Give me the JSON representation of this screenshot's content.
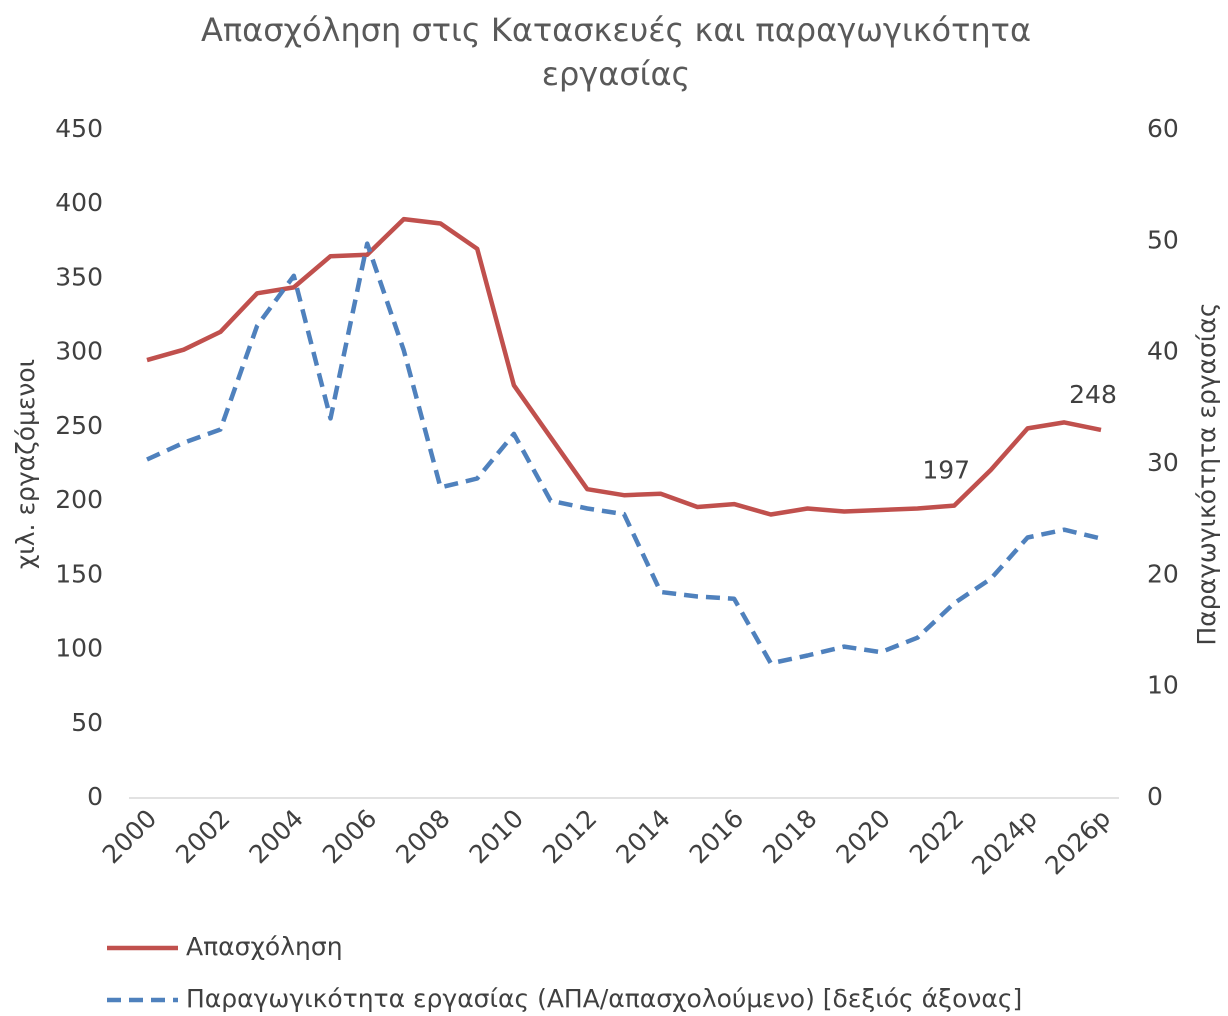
{
  "chart_data": {
    "type": "line",
    "title": [
      "Απασχόληση στις Κατασκευές και παραγωγικότητα",
      "εργασίας"
    ],
    "y_label": "χιλ. εργαζόμενοι",
    "y2_label": "Παραγωγικότητα εργασίας",
    "categories": [
      "2000",
      null,
      "2002",
      null,
      "2004",
      null,
      "2006",
      null,
      "2008",
      null,
      "2010",
      null,
      "2012",
      null,
      "2014",
      null,
      "2016",
      null,
      "2018",
      null,
      "2020",
      null,
      "2022",
      null,
      "2024p",
      null,
      "2026p"
    ],
    "series": [
      {
        "name": "Απασχόληση",
        "color": "#c0504d",
        "dash": false,
        "values": [
          295,
          302,
          314,
          340,
          344,
          365,
          366,
          390,
          387,
          370,
          278,
          243,
          208,
          204,
          205,
          196,
          198,
          191,
          195,
          193,
          194,
          195,
          197,
          221,
          249,
          253,
          248
        ],
        "data_labels": [
          22,
          26
        ]
      },
      {
        "name": "Παραγωγικότητα εργασίας (ΑΠΑ/απασχολούμενο) [δεξιός άξονας]",
        "color": "#4f81bd",
        "dash": true,
        "axis": "y2",
        "values": [
          30.4,
          31.9,
          33.1,
          42.4,
          46.9,
          34.1,
          49.8,
          40.2,
          27.9,
          28.7,
          32.7,
          26.7,
          26.0,
          25.5,
          18.5,
          18.1,
          17.9,
          12.1,
          12.8,
          13.6,
          13.1,
          14.4,
          17.5,
          19.7,
          23.4,
          24.1,
          23.3
        ]
      }
    ],
    "ylim": [
      0,
      450
    ],
    "yticks": [
      0,
      50,
      100,
      150,
      200,
      250,
      300,
      350,
      400,
      450
    ],
    "y2lim": [
      0,
      60
    ],
    "y2ticks": [
      0,
      10,
      20,
      30,
      40,
      50,
      60
    ],
    "grid": false,
    "legend": "bottom"
  }
}
